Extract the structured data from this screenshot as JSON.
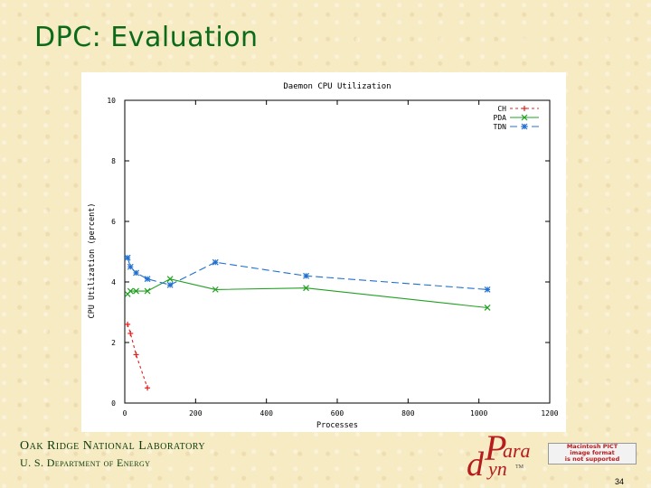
{
  "slide": {
    "title": "DPC: Evaluation",
    "footer_org": "Oak Ridge National Laboratory",
    "footer_dept": "U. S. Department of Energy",
    "page_number": "34"
  },
  "logo": {
    "p": "P",
    "ara": "ara",
    "d": "d",
    "yn": "yn",
    "tm": "TM"
  },
  "pict_placeholder": {
    "line1": "Macintosh PICT",
    "line2": "image format",
    "line3": "is not supported"
  },
  "colors": {
    "title": "#0b6b1a",
    "CH": "#e02020",
    "PDA": "#20a020",
    "TDN": "#2070d0"
  },
  "chart_data": {
    "type": "line",
    "title": "Daemon CPU Utilization",
    "xlabel": "Processes",
    "ylabel": "CPU Utilization (percent)",
    "xlim": [
      0,
      1200
    ],
    "ylim": [
      0,
      10
    ],
    "xticks": [
      0,
      200,
      400,
      600,
      800,
      1000,
      1200
    ],
    "yticks": [
      0,
      2,
      4,
      6,
      8,
      10
    ],
    "legend_position": "top-right",
    "series": [
      {
        "name": "CH",
        "marker": "+",
        "dash": "3,3",
        "x": [
          8,
          16,
          32,
          64
        ],
        "y": [
          2.6,
          2.3,
          1.6,
          0.5
        ]
      },
      {
        "name": "PDA",
        "marker": "x",
        "dash": "",
        "x": [
          8,
          16,
          32,
          64,
          128,
          256,
          512,
          1024
        ],
        "y": [
          3.6,
          3.7,
          3.7,
          3.7,
          4.1,
          3.75,
          3.8,
          3.15
        ]
      },
      {
        "name": "TDN",
        "marker": "*",
        "dash": "8,4",
        "x": [
          8,
          16,
          32,
          64,
          128,
          256,
          512,
          1024
        ],
        "y": [
          4.8,
          4.5,
          4.3,
          4.1,
          3.9,
          4.65,
          4.2,
          3.75
        ]
      }
    ]
  }
}
